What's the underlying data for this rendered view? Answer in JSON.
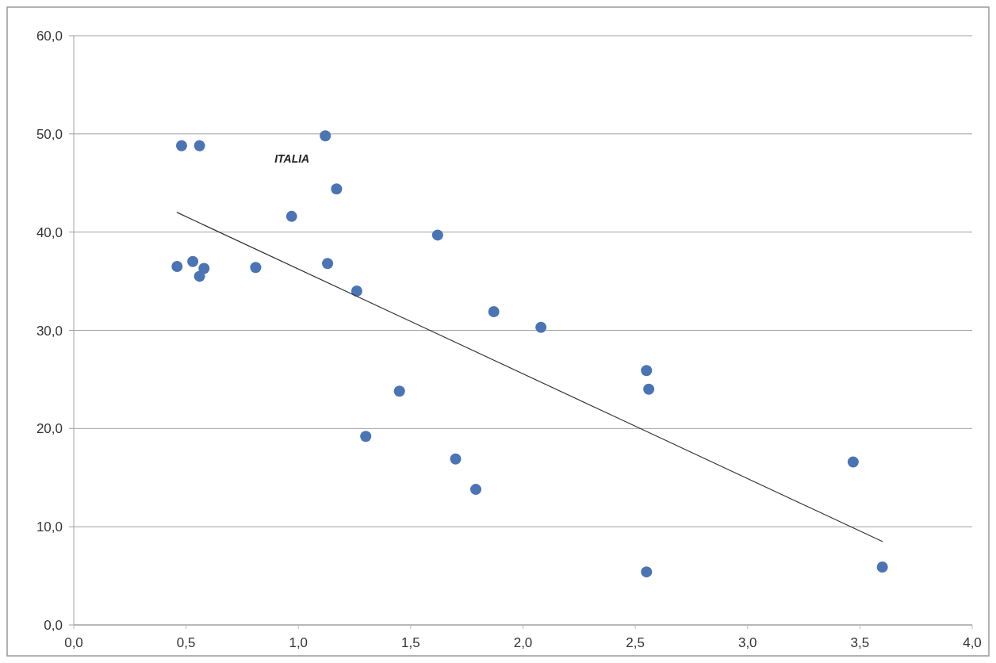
{
  "chart_data": {
    "type": "scatter",
    "xlim": [
      0,
      4
    ],
    "ylim": [
      0,
      60
    ],
    "xticks": [
      {
        "value": 0,
        "label": "0,0"
      },
      {
        "value": 0.5,
        "label": "0,5"
      },
      {
        "value": 1,
        "label": "1,0"
      },
      {
        "value": 1.5,
        "label": "1,5"
      },
      {
        "value": 2,
        "label": "2,0"
      },
      {
        "value": 2.5,
        "label": "2,5"
      },
      {
        "value": 3,
        "label": "3,0"
      },
      {
        "value": 3.5,
        "label": "3,5"
      },
      {
        "value": 4,
        "label": "4,0"
      }
    ],
    "yticks": [
      {
        "value": 0,
        "label": "0,0"
      },
      {
        "value": 10,
        "label": "10,0"
      },
      {
        "value": 20,
        "label": "20,0"
      },
      {
        "value": 30,
        "label": "30,0"
      },
      {
        "value": 40,
        "label": "40,0"
      },
      {
        "value": 50,
        "label": "50,0"
      },
      {
        "value": 60,
        "label": "60,0"
      }
    ],
    "grid": "y",
    "series": [
      {
        "marker": "circle",
        "color": "#4a74b4",
        "x": [
          0.46,
          0.48,
          0.56,
          0.53,
          0.56,
          0.58,
          0.81,
          0.97,
          1.12,
          1.13,
          1.17,
          1.26,
          1.3,
          1.45,
          1.62,
          1.7,
          1.79,
          1.87,
          2.08,
          2.55,
          2.56,
          2.55,
          3.47,
          3.6
        ],
        "values": [
          36.5,
          48.8,
          48.8,
          37.0,
          35.5,
          36.3,
          36.4,
          41.6,
          49.8,
          36.8,
          44.4,
          34.0,
          19.2,
          23.8,
          39.7,
          16.9,
          13.8,
          31.9,
          30.3,
          25.9,
          24.0,
          5.4,
          16.6,
          5.9
        ]
      },
      {
        "type": "line",
        "color": "#333333",
        "line_style": "solid",
        "x": [
          0.46,
          3.6
        ],
        "values": [
          42.0,
          8.5
        ]
      }
    ],
    "annotations": [
      {
        "text": "ITALIA",
        "x": 1.12,
        "y": 49.8
      }
    ]
  }
}
